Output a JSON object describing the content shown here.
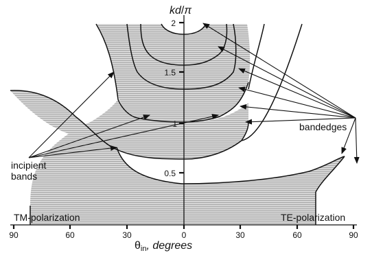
{
  "y_axis": {
    "label_main": "kd",
    "label_sep": "/",
    "label_pi": "π",
    "ticks": [
      "0.5",
      "1",
      "1.5",
      "2"
    ]
  },
  "x_axis": {
    "symbol": "θ",
    "subscript": "in",
    "unit": ", degrees",
    "ticks": [
      "90",
      "60",
      "30",
      "0",
      "30",
      "60",
      "90"
    ]
  },
  "labels": {
    "tm": "TM-polarization",
    "te": "TE-polarization",
    "bandedges": "bandedges",
    "incipient_line1": "incipient",
    "incipient_line2": "bands"
  }
}
